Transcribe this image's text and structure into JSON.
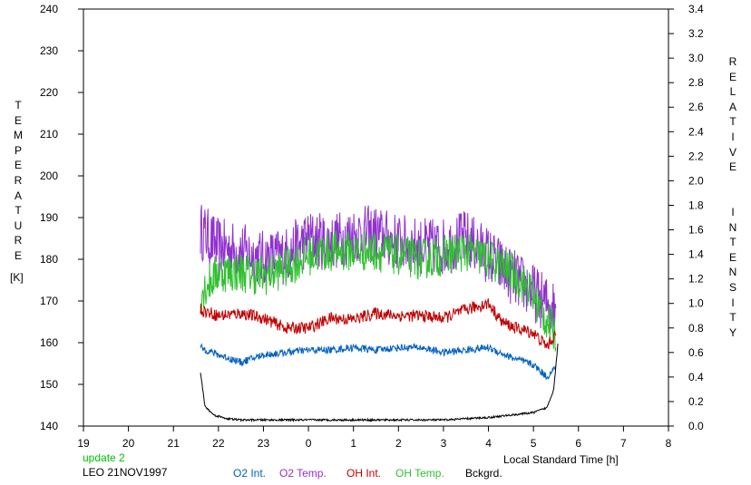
{
  "title_left": "update 2",
  "station": "LEO 21NOV1997",
  "xlabel": "Local Standard Time [h]",
  "ylabel_left": "TEMPERATURE",
  "ylabel_left_unit": "[K]",
  "ylabel_right": "RELATIVE  INTENSITY",
  "legend": [
    {
      "label": "O2 Int.",
      "color": "#0060c0"
    },
    {
      "label": "O2 Temp.",
      "color": "#9030d0"
    },
    {
      "label": "OH Int.",
      "color": "#c00000"
    },
    {
      "label": "OH Temp.",
      "color": "#30c030"
    },
    {
      "label": "Bckgrd.",
      "color": "#000000"
    }
  ],
  "chart_data": {
    "type": "line",
    "x_ticks": [
      "19",
      "20",
      "21",
      "22",
      "23",
      "0",
      "1",
      "2",
      "3",
      "4",
      "5",
      "6",
      "7",
      "8"
    ],
    "y_left_ticks": [
      "140",
      "150",
      "160",
      "170",
      "180",
      "190",
      "200",
      "210",
      "220",
      "230",
      "240"
    ],
    "y_right_ticks": [
      "0.0",
      "0.2",
      "0.4",
      "0.6",
      "0.8",
      "1.0",
      "1.2",
      "1.4",
      "1.6",
      "1.8",
      "2.0",
      "2.2",
      "2.4",
      "2.6",
      "2.8",
      "3.0",
      "3.2",
      "3.4"
    ],
    "xlim": [
      19,
      32
    ],
    "ylim_left": [
      140,
      240
    ],
    "ylim_right": [
      0,
      3.4
    ],
    "x_note": "hours after 19 LST continue past midnight: 24=0, 25=1 ... 32=8",
    "series": [
      {
        "name": "O2 Temp.",
        "axis": "left",
        "color": "#9030d0",
        "noise": 7,
        "x": [
          21.6,
          22.0,
          22.5,
          23.0,
          23.5,
          24.0,
          24.5,
          25.0,
          25.5,
          26.0,
          26.5,
          27.0,
          27.5,
          28.0,
          28.5,
          28.9,
          29.2,
          29.5
        ],
        "y": [
          187,
          183,
          182,
          180,
          181,
          185,
          184,
          186,
          186,
          184,
          183,
          183,
          185,
          181,
          176,
          173,
          170,
          168
        ]
      },
      {
        "name": "OH Temp.",
        "axis": "left",
        "color": "#30c030",
        "noise": 5,
        "x": [
          21.6,
          22.0,
          22.5,
          23.0,
          23.5,
          24.0,
          24.5,
          25.0,
          25.5,
          26.0,
          26.5,
          27.0,
          27.5,
          28.0,
          28.5,
          28.9,
          29.2,
          29.5
        ],
        "y": [
          172,
          177,
          177,
          176,
          178,
          181,
          182,
          182,
          182,
          181,
          180,
          181,
          182,
          180,
          177,
          173,
          167,
          162
        ]
      },
      {
        "name": "OH Int.",
        "axis": "right",
        "color": "#c00000",
        "noise": 0.05,
        "x": [
          21.6,
          22.0,
          22.5,
          23.0,
          23.5,
          24.0,
          24.5,
          25.0,
          25.5,
          26.0,
          26.5,
          27.0,
          27.5,
          28.0,
          28.3,
          28.6,
          29.0,
          29.3,
          29.5
        ],
        "y": [
          0.95,
          0.9,
          0.92,
          0.88,
          0.8,
          0.8,
          0.88,
          0.87,
          0.92,
          0.9,
          0.9,
          0.88,
          0.95,
          1.0,
          0.85,
          0.8,
          0.76,
          0.65,
          0.75
        ]
      },
      {
        "name": "O2 Int.",
        "axis": "right",
        "color": "#0060c0",
        "noise": 0.03,
        "x": [
          21.6,
          22.0,
          22.5,
          23.0,
          23.5,
          24.0,
          24.5,
          25.0,
          25.5,
          26.0,
          26.5,
          27.0,
          27.5,
          28.0,
          28.5,
          29.0,
          29.3,
          29.5
        ],
        "y": [
          0.64,
          0.58,
          0.52,
          0.58,
          0.6,
          0.62,
          0.62,
          0.64,
          0.62,
          0.64,
          0.64,
          0.6,
          0.62,
          0.64,
          0.56,
          0.5,
          0.4,
          0.48
        ]
      },
      {
        "name": "Bckgrd.",
        "axis": "right",
        "color": "#000000",
        "noise": 0.008,
        "x": [
          21.6,
          21.7,
          21.9,
          22.2,
          22.5,
          23.0,
          24.0,
          25.0,
          26.0,
          27.0,
          28.0,
          28.5,
          29.0,
          29.3,
          29.45,
          29.55
        ],
        "y": [
          0.44,
          0.16,
          0.09,
          0.06,
          0.05,
          0.05,
          0.05,
          0.05,
          0.05,
          0.05,
          0.07,
          0.09,
          0.11,
          0.15,
          0.3,
          0.7
        ]
      }
    ]
  }
}
